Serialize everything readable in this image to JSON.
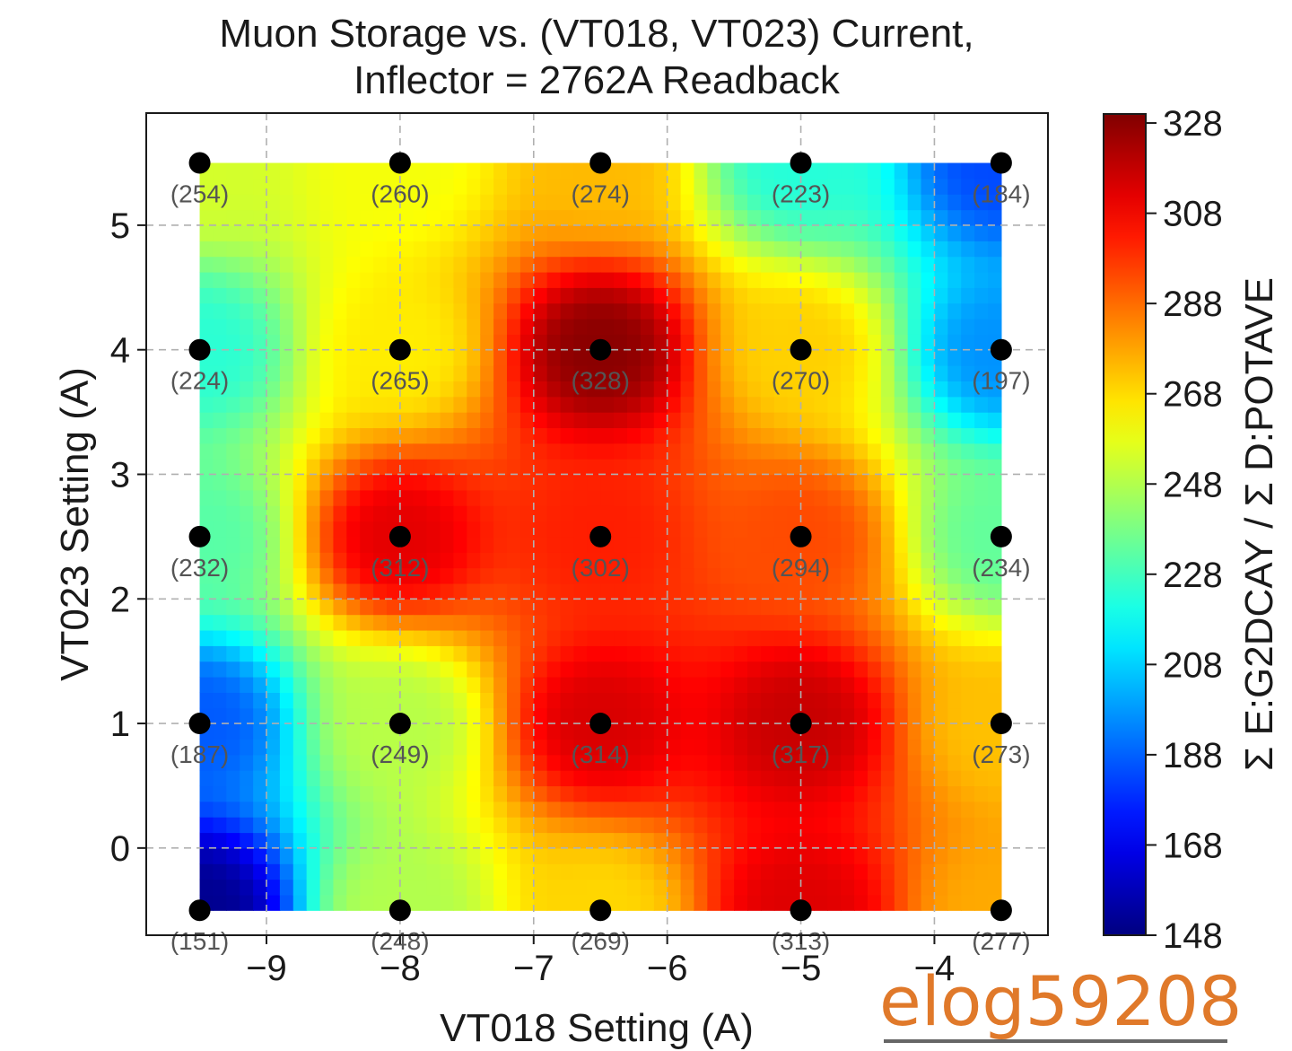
{
  "chart_data": {
    "type": "heatmap",
    "title_line1": "Muon Storage vs. (VT018, VT023) Current,",
    "title_line2": "Inflector = 2762A Readback",
    "xlabel": "VT018 Setting (A)",
    "ylabel": "VT023 Setting (A)",
    "colorbar_label": "Σ E:G2DCAY / Σ D:POTAVE",
    "colormap": "jet",
    "xlim": [
      -9.9,
      -3.15
    ],
    "ylim": [
      -0.7,
      5.9
    ],
    "x_ticks": [
      -9,
      -8,
      -7,
      -6,
      -5,
      -4
    ],
    "x_tick_labels": [
      "−9",
      "−8",
      "−7",
      "−6",
      "−5",
      "−4"
    ],
    "y_ticks": [
      0,
      1,
      2,
      3,
      4,
      5
    ],
    "y_tick_labels": [
      "0",
      "1",
      "2",
      "3",
      "4",
      "5"
    ],
    "colorbar_range": [
      148,
      330
    ],
    "colorbar_ticks": [
      148,
      168,
      188,
      208,
      228,
      248,
      268,
      288,
      308,
      328
    ],
    "colorbar_tick_labels": [
      "148",
      "168",
      "188",
      "208",
      "228",
      "248",
      "268",
      "288",
      "308",
      "328"
    ],
    "grid": true,
    "x": [
      -9.5,
      -8.0,
      -6.5,
      -5.0,
      -3.5
    ],
    "y": [
      5.5,
      4.0,
      2.5,
      1.0,
      -0.5
    ],
    "values": [
      [
        254,
        260,
        274,
        223,
        184
      ],
      [
        224,
        265,
        328,
        270,
        197
      ],
      [
        232,
        312,
        302,
        294,
        234
      ],
      [
        187,
        249,
        314,
        317,
        273
      ],
      [
        151,
        248,
        269,
        313,
        277
      ]
    ],
    "point_labels": [
      [
        "(254)",
        "(260)",
        "(274)",
        "(223)",
        "(184)"
      ],
      [
        "(224)",
        "(265)",
        "(328)",
        "(270)",
        "(197)"
      ],
      [
        "(232)",
        "(312)",
        "(302)",
        "(294)",
        "(234)"
      ],
      [
        "(187)",
        "(249)",
        "(314)",
        "(317)",
        "(273)"
      ],
      [
        "(151)",
        "(248)",
        "(269)",
        "(313)",
        "(277)"
      ]
    ]
  },
  "watermark": "elog59208",
  "colors": {
    "marker": "#000000",
    "grid": "#b0b0b0",
    "watermark": "#e0792a"
  }
}
